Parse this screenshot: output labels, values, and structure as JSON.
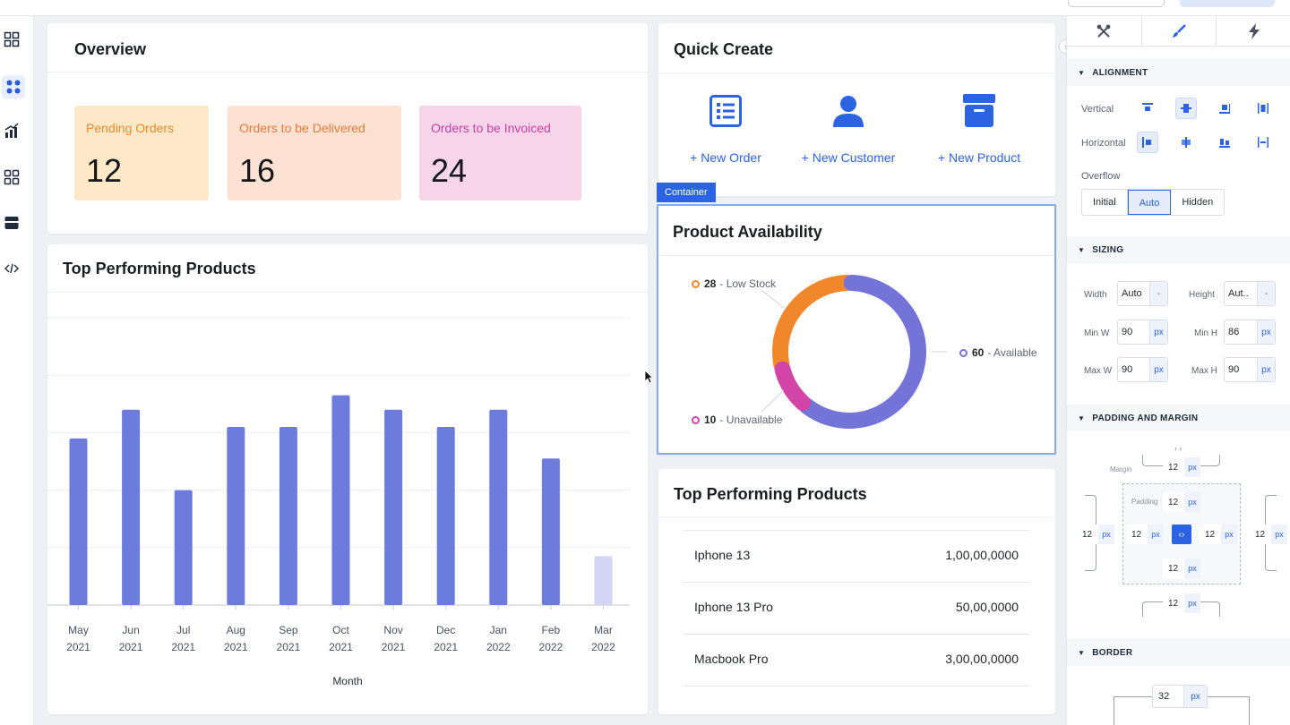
{
  "left_rail": {
    "items": [
      {
        "name": "widgets-icon"
      },
      {
        "name": "components-icon",
        "active": true
      },
      {
        "name": "analytics-icon"
      },
      {
        "name": "apps-grid-icon"
      },
      {
        "name": "database-icon"
      },
      {
        "name": "code-icon"
      }
    ]
  },
  "overview": {
    "title": "Overview",
    "stats": [
      {
        "label": "Pending Orders",
        "value": "12",
        "bg": "#fde9c8",
        "fg": "#e8892b"
      },
      {
        "label": "Orders to be Delivered",
        "value": "16",
        "bg": "#fde2d3",
        "fg": "#ea7a3a"
      },
      {
        "label": "Orders to be Invoiced",
        "value": "24",
        "bg": "#f6d5ea",
        "fg": "#c93fa0"
      }
    ]
  },
  "top_products_chart": {
    "title": "Top Performing Products",
    "xlabel": "Month"
  },
  "chart_data": {
    "type": "bar",
    "categories": [
      "May 2021",
      "Jun 2021",
      "Jul 2021",
      "Aug 2021",
      "Sep 2021",
      "Oct 2021",
      "Nov 2021",
      "Dec 2021",
      "Jan 2022",
      "Feb 2022",
      "Mar 2022"
    ],
    "month_labels": [
      "May",
      "Jun",
      "Jul",
      "Aug",
      "Sep",
      "Oct",
      "Nov",
      "Dec",
      "Jan",
      "Feb",
      "Mar"
    ],
    "year_labels": [
      "2021",
      "2021",
      "2021",
      "2021",
      "2021",
      "2021",
      "2021",
      "2021",
      "2022",
      "2022",
      "2022"
    ],
    "values": [
      58,
      68,
      40,
      62,
      62,
      73,
      68,
      62,
      68,
      51,
      17
    ],
    "ylim": [
      0,
      100
    ],
    "title": "Top Performing Products",
    "xlabel": "Month",
    "ylabel": "",
    "grid": true,
    "bar_color": "#6c7bdc",
    "highlight_color": "#d2d5f4"
  },
  "quick_create": {
    "title": "Quick Create",
    "items": [
      {
        "label": "+ New Order",
        "icon": "order-list-icon"
      },
      {
        "label": "+ New Customer",
        "icon": "customer-icon"
      },
      {
        "label": "+ New Product",
        "icon": "product-box-icon"
      }
    ]
  },
  "container_tag": "Container",
  "availability": {
    "title": "Product Availability",
    "slices": [
      {
        "value": "28",
        "label": "- Low Stock",
        "color": "#f0882b"
      },
      {
        "value": "60",
        "label": "- Available",
        "color": "#7474d8"
      },
      {
        "value": "10",
        "label": "- Unavailable",
        "color": "#d245a6"
      }
    ]
  },
  "top_products_table": {
    "title": "Top Performing Products",
    "rows": [
      {
        "name": "Iphone 13",
        "value": "1,00,00,0000"
      },
      {
        "name": "Iphone 13 Pro",
        "value": "50,00,0000"
      },
      {
        "name": "Macbook Pro",
        "value": "3,00,00,0000"
      }
    ]
  },
  "panel": {
    "tabs": [
      {
        "icon": "tools-icon"
      },
      {
        "icon": "brush-icon",
        "active": true
      },
      {
        "icon": "lightning-icon"
      }
    ],
    "alignment": {
      "title": "ALIGNMENT",
      "vertical_label": "Vertical",
      "horizontal_label": "Horizontal",
      "overflow_label": "Overflow",
      "overflow_options": [
        "Initial",
        "Auto",
        "Hidden"
      ],
      "overflow_selected": "Auto"
    },
    "sizing": {
      "title": "SIZING",
      "width_label": "Width",
      "width_value": "Auto",
      "width_unit": "-",
      "height_label": "Height",
      "height_value": "Aut..",
      "height_unit": "-",
      "minw_label": "Min W",
      "minw_value": "90",
      "minw_unit": "px",
      "minh_label": "Min H",
      "minh_value": "86",
      "minh_unit": "px",
      "maxw_label": "Max W",
      "maxw_value": "90",
      "maxw_unit": "px",
      "maxh_label": "Max H",
      "maxh_value": "90",
      "maxh_unit": "px"
    },
    "padding_margin": {
      "title": "PADDING AND MARGIN",
      "margin_label": "Margin",
      "padding_label": "Padding",
      "unit": "px",
      "margin_top": "12",
      "margin_left": "12",
      "margin_right": "12",
      "margin_bottom": "12",
      "padding_top": "12",
      "padding_left": "12",
      "padding_right": "12",
      "padding_bottom": "12"
    },
    "border": {
      "title": "BORDER",
      "value": "32",
      "unit": "px"
    }
  }
}
